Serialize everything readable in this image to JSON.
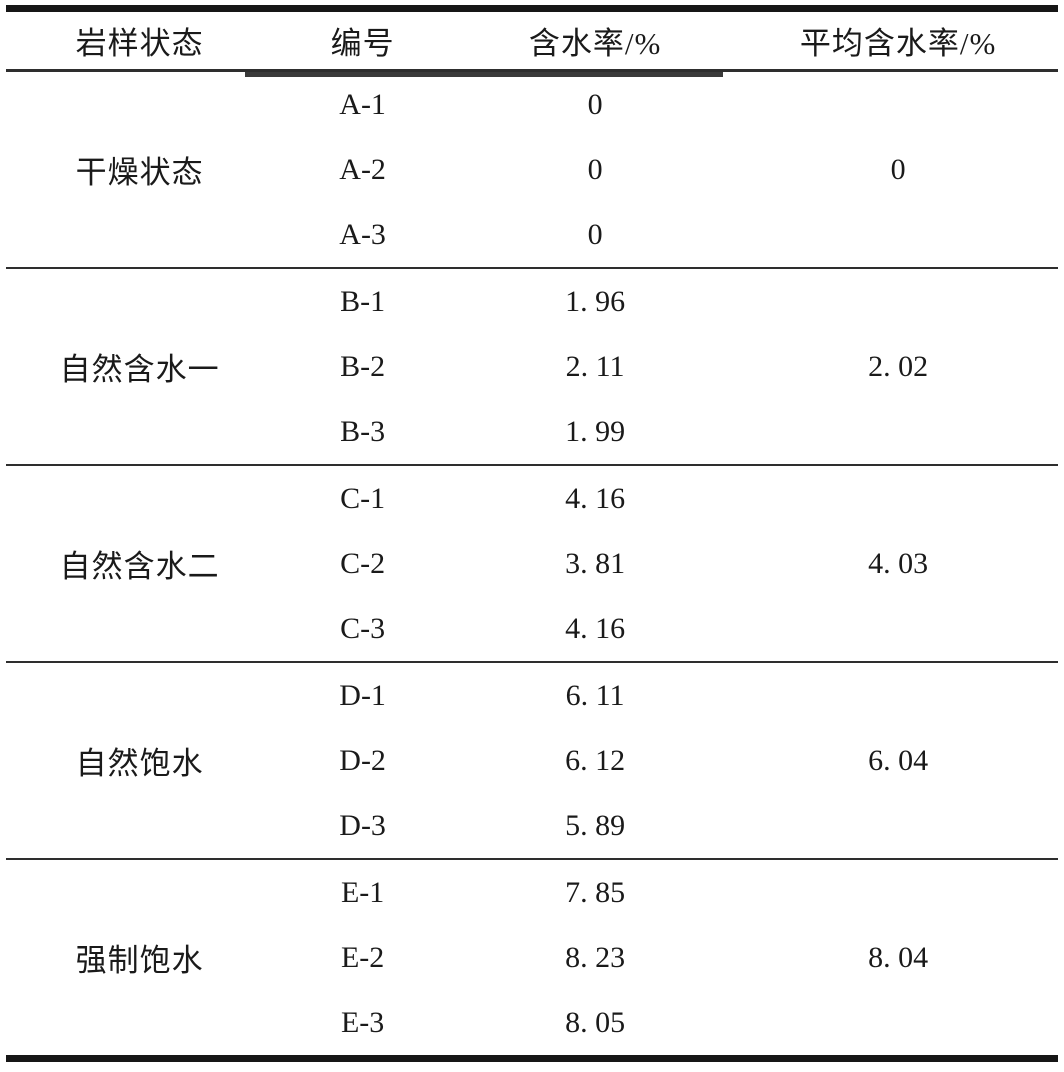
{
  "table": {
    "headers": [
      "岩样状态",
      "编号",
      "含水率/%",
      "平均含水率/%"
    ],
    "groups": [
      {
        "state": "干燥状态",
        "samples": [
          {
            "id": "A-1",
            "moisture": "0"
          },
          {
            "id": "A-2",
            "moisture": "0"
          },
          {
            "id": "A-3",
            "moisture": "0"
          }
        ],
        "average": "0"
      },
      {
        "state": "自然含水一",
        "samples": [
          {
            "id": "B-1",
            "moisture": "1. 96"
          },
          {
            "id": "B-2",
            "moisture": "2. 11"
          },
          {
            "id": "B-3",
            "moisture": "1. 99"
          }
        ],
        "average": "2. 02"
      },
      {
        "state": "自然含水二",
        "samples": [
          {
            "id": "C-1",
            "moisture": "4. 16"
          },
          {
            "id": "C-2",
            "moisture": "3. 81"
          },
          {
            "id": "C-3",
            "moisture": "4. 16"
          }
        ],
        "average": "4. 03"
      },
      {
        "state": "自然饱水",
        "samples": [
          {
            "id": "D-1",
            "moisture": "6. 11"
          },
          {
            "id": "D-2",
            "moisture": "6. 12"
          },
          {
            "id": "D-3",
            "moisture": "5. 89"
          }
        ],
        "average": "6. 04"
      },
      {
        "state": "强制饱水",
        "samples": [
          {
            "id": "E-1",
            "moisture": "7. 85"
          },
          {
            "id": "E-2",
            "moisture": "8. 23"
          },
          {
            "id": "E-3",
            "moisture": "8. 05"
          }
        ],
        "average": "8. 04"
      }
    ]
  },
  "colors": {
    "text": "#1a1a1a",
    "rule": "#2e2e2e",
    "thick_rule": "#161616",
    "background": "#ffffff"
  }
}
